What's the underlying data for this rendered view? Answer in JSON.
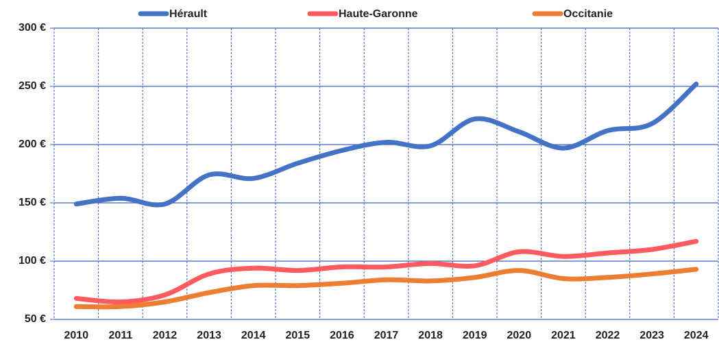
{
  "chart_data": {
    "type": "line",
    "categories": [
      "2010",
      "2011",
      "2012",
      "2013",
      "2014",
      "2015",
      "2016",
      "2017",
      "2018",
      "2019",
      "2020",
      "2021",
      "2022",
      "2023",
      "2024"
    ],
    "series": [
      {
        "name": "Hérault",
        "color": "#4472c4",
        "values": [
          149,
          154,
          149,
          174,
          171,
          184,
          195,
          202,
          199,
          222,
          211,
          197,
          212,
          218,
          252
        ]
      },
      {
        "name": "Haute-Garonne",
        "color": "#ff5a5f",
        "values": [
          68,
          65,
          71,
          89,
          94,
          92,
          95,
          95,
          98,
          96,
          108,
          104,
          107,
          110,
          117
        ]
      },
      {
        "name": "Occitanie",
        "color": "#ed7d31",
        "values": [
          61,
          61,
          65,
          73,
          79,
          79,
          81,
          84,
          83,
          86,
          92,
          85,
          86,
          89,
          93
        ]
      }
    ],
    "ylim": [
      50,
      300
    ],
    "yticks": [
      {
        "value": 50,
        "label": "50 €"
      },
      {
        "value": 100,
        "label": "100 €"
      },
      {
        "value": 150,
        "label": "150 €"
      },
      {
        "value": 200,
        "label": "200 €"
      },
      {
        "value": 250,
        "label": "250 €"
      },
      {
        "value": 300,
        "label": "300 €"
      }
    ],
    "grid": true,
    "smooth": true,
    "legend": "top"
  }
}
